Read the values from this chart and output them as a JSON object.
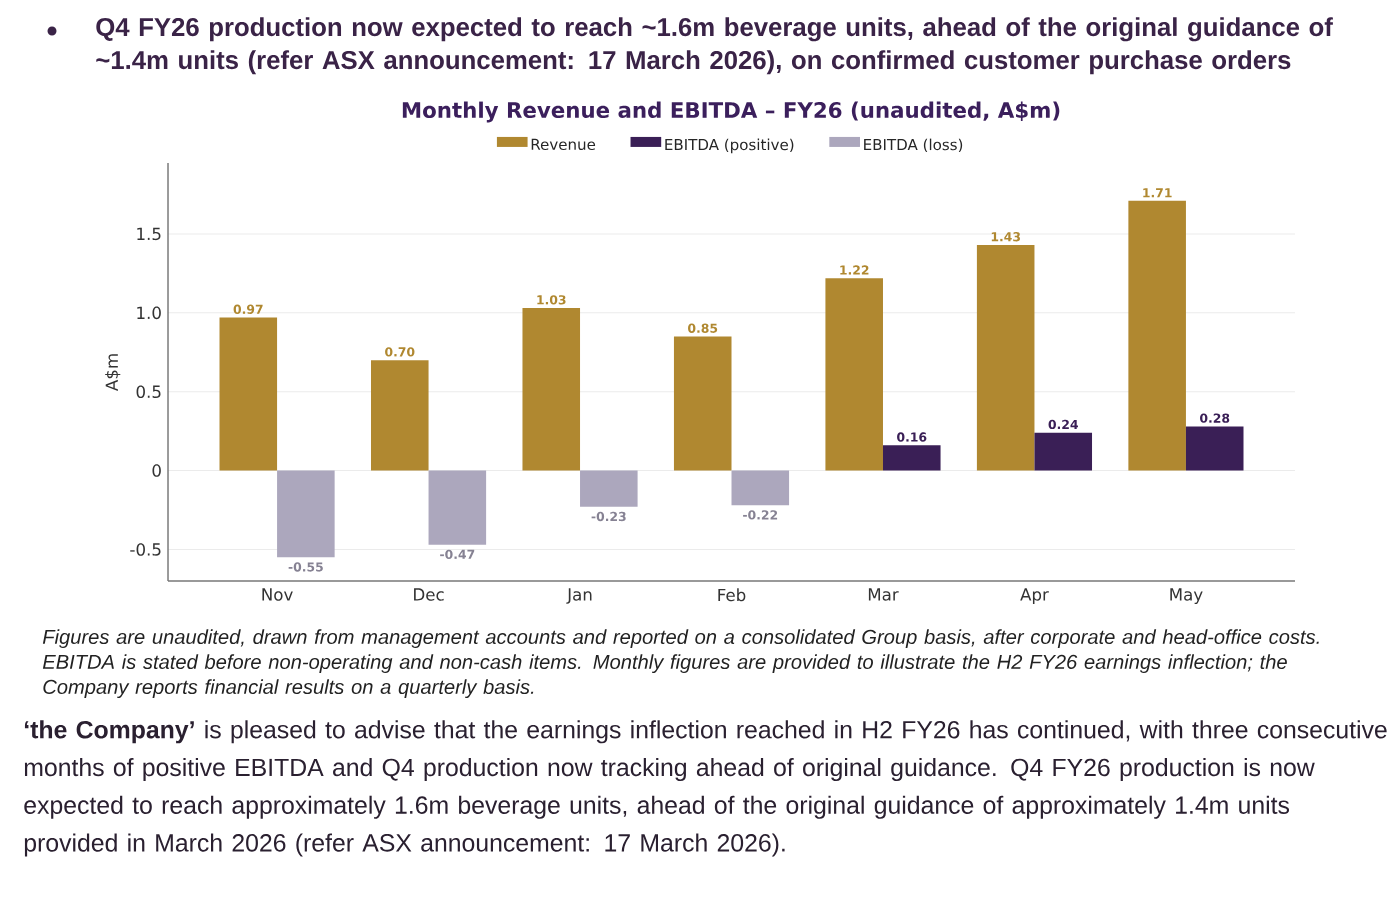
{
  "chart_data": {
    "type": "bar",
    "title": "Monthly Revenue and EBITDA – FY26 (unaudited, A$m)",
    "ylabel": "A$m",
    "categories": [
      "Nov",
      "Dec",
      "Jan",
      "Feb",
      "Mar",
      "Apr",
      "May"
    ],
    "series": [
      {
        "name": "Revenue",
        "color": "#b08830",
        "values": [
          0.97,
          0.7,
          1.03,
          0.85,
          1.22,
          1.43,
          1.71
        ],
        "value_labels": [
          "0.97",
          "0.70",
          "1.03",
          "0.85",
          "1.22",
          "1.43",
          "1.71"
        ]
      },
      {
        "name": "EBITDA (positive)",
        "color": "#3a1f56",
        "values": [
          null,
          null,
          null,
          null,
          0.16,
          0.24,
          0.28
        ],
        "value_labels": [
          null,
          null,
          null,
          null,
          "0.16",
          "0.24",
          "0.28"
        ]
      },
      {
        "name": "EBITDA (loss)",
        "color": "#aca7bd",
        "values": [
          -0.55,
          -0.47,
          -0.23,
          -0.22,
          null,
          null,
          null
        ],
        "value_labels": [
          "-0.55",
          "-0.47",
          "-0.23",
          "-0.22",
          null,
          null,
          null
        ]
      }
    ],
    "ylim": [
      -0.7,
      1.95
    ],
    "yticks": [
      -0.5,
      0,
      0.5,
      {
        "value": 1,
        "label": "1.0"
      },
      1.5
    ],
    "grid": "y",
    "legend": "top",
    "annotations": [
      "Q4 FY26 production now expected to reach ~1.6m beverage units, ahead of the original guidance of ~1.4m units (refer ASX announcement: 17 March 2026), on confirmed customer purchase orders",
      "Figures are unaudited, drawn from management accounts and reported on a consolidated Group basis, after corporate and head-office costs. EBITDA is stated before non-operating and non-cash items. Monthly figures are provided to illustrate the H2 FY26 earnings inflection; the Company reports financial results on a quarterly basis.",
      "**‘the Company’** is pleased to advise that the earnings inflection reached in H2 FY26 has continued, with three consecutive months of positive EBITDA and Q4 production now tracking ahead of original guidance. Q4 FY26 production is now expected to reach approximately 1.6m beverage units, ahead of the original guidance of approximately 1.4m units provided in March 2026 (refer ASX announcement: 17 March 2026)."
    ]
  }
}
